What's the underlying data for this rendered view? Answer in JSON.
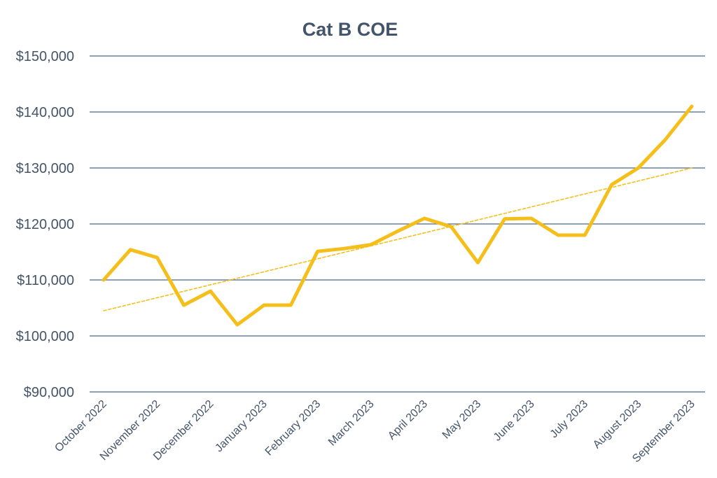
{
  "chart_data": {
    "type": "line",
    "title": "Cat B COE",
    "xlabel": "",
    "ylabel": "",
    "ylim": [
      90000,
      150000
    ],
    "yticks": [
      90000,
      100000,
      110000,
      120000,
      130000,
      140000,
      150000
    ],
    "ytick_labels": [
      "$90,000",
      "$100,000",
      "$110,000",
      "$120,000",
      "$130,000",
      "$140,000",
      "$150,000"
    ],
    "xtick_labels": [
      "October 2022",
      "November 2022",
      "December 2022",
      "January 2023",
      "February 2023",
      "March 2023",
      "April 2023",
      "May 2023",
      "June 2023",
      "July 2023",
      "August 2023",
      "September 2023"
    ],
    "grid": true,
    "legend": "none",
    "series": [
      {
        "name": "Cat B COE",
        "color": "#f5bf1b",
        "style": "solid",
        "x": [
          0,
          0.5,
          1,
          1.5,
          2,
          2.5,
          3,
          3.5,
          4,
          4.5,
          5,
          5.5,
          6,
          6.5,
          7,
          7.5,
          8,
          8.5,
          9,
          9.5,
          10,
          10.5,
          11
        ],
        "values": [
          110000,
          115400,
          114000,
          105500,
          108000,
          102000,
          105500,
          105500,
          115100,
          115600,
          116300,
          118700,
          121000,
          119500,
          113100,
          120900,
          121000,
          118000,
          118000,
          127000,
          130000,
          135000,
          141000
        ]
      },
      {
        "name": "Linear trend",
        "color": "#f5bf1b",
        "style": "dashed",
        "x": [
          0,
          11
        ],
        "values": [
          104500,
          130000
        ]
      }
    ]
  }
}
